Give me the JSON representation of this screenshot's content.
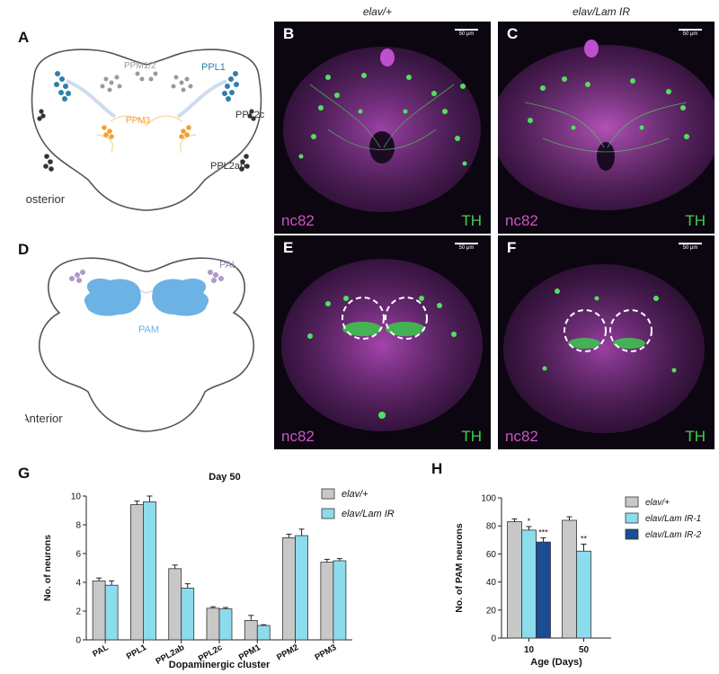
{
  "panels": {
    "A": "A",
    "B": "B",
    "C": "C",
    "D": "D",
    "E": "E",
    "F": "F",
    "G": "G",
    "H": "H"
  },
  "columns": {
    "left": "elav/+",
    "right": "elav/Lam IR"
  },
  "stain": {
    "magenta": "nc82",
    "green": "TH"
  },
  "scale_bar": "50 μm",
  "diagram_posterior": {
    "view": "Posterior",
    "clusters": [
      "PPM1/2",
      "PPL1",
      "PPM3",
      "PPL2c",
      "PPL2ab"
    ],
    "colors": {
      "PPM1/2": "#9a9a9a",
      "PPL1": "#2f7eab",
      "PPM3": "#f2a12f",
      "PPL2c": "#333333",
      "PPL2ab": "#333333"
    }
  },
  "diagram_anterior": {
    "view": "Anterior",
    "clusters": [
      "PAL",
      "PAM"
    ],
    "colors": {
      "PAL": "#b09ac6",
      "PAM": "#6cb2e4"
    }
  },
  "chart_data": [
    {
      "type": "bar",
      "title": "Day 50",
      "xlabel": "Dopaminergic cluster",
      "ylabel": "No. of neurons",
      "categories": [
        "PAL",
        "PPL1",
        "PPL2ab",
        "PPL2c",
        "PPM1",
        "PPM2",
        "PPM3"
      ],
      "ylim": [
        0,
        10
      ],
      "yticks": [
        0,
        2,
        4,
        6,
        8,
        10
      ],
      "series": [
        {
          "name": "elav/+",
          "color": "#c8c8c8",
          "values": [
            4.1,
            9.4,
            4.95,
            2.2,
            1.35,
            7.1,
            5.4
          ],
          "errors": [
            0.2,
            0.25,
            0.25,
            0.1,
            0.35,
            0.25,
            0.2
          ]
        },
        {
          "name": "elav/Lam IR",
          "color": "#8bdcec",
          "values": [
            3.8,
            9.6,
            3.6,
            2.15,
            1.0,
            7.25,
            5.5
          ],
          "errors": [
            0.3,
            0.4,
            0.3,
            0.1,
            0.05,
            0.45,
            0.15
          ]
        }
      ],
      "legend": "top-right"
    },
    {
      "type": "bar",
      "xlabel": "Age (Days)",
      "ylabel": "No. of PAM neurons",
      "categories": [
        "10",
        "50"
      ],
      "ylim": [
        0,
        100
      ],
      "yticks": [
        0,
        20,
        40,
        60,
        80,
        100
      ],
      "series": [
        {
          "name": "elav/+",
          "color": "#c8c8c8",
          "values": [
            83,
            84
          ],
          "errors": [
            2,
            2.5
          ],
          "sig": [
            "",
            ""
          ]
        },
        {
          "name": "elav/Lam IR-1",
          "color": "#8bdcec",
          "values": [
            77,
            62
          ],
          "errors": [
            2.5,
            5
          ],
          "sig": [
            "*",
            "**"
          ]
        },
        {
          "name": "elav/Lam IR-2",
          "color": "#1a4d94",
          "values": [
            68.5,
            null
          ],
          "errors": [
            3,
            null
          ],
          "sig": [
            "***",
            ""
          ]
        }
      ],
      "legend": "top-right"
    }
  ]
}
